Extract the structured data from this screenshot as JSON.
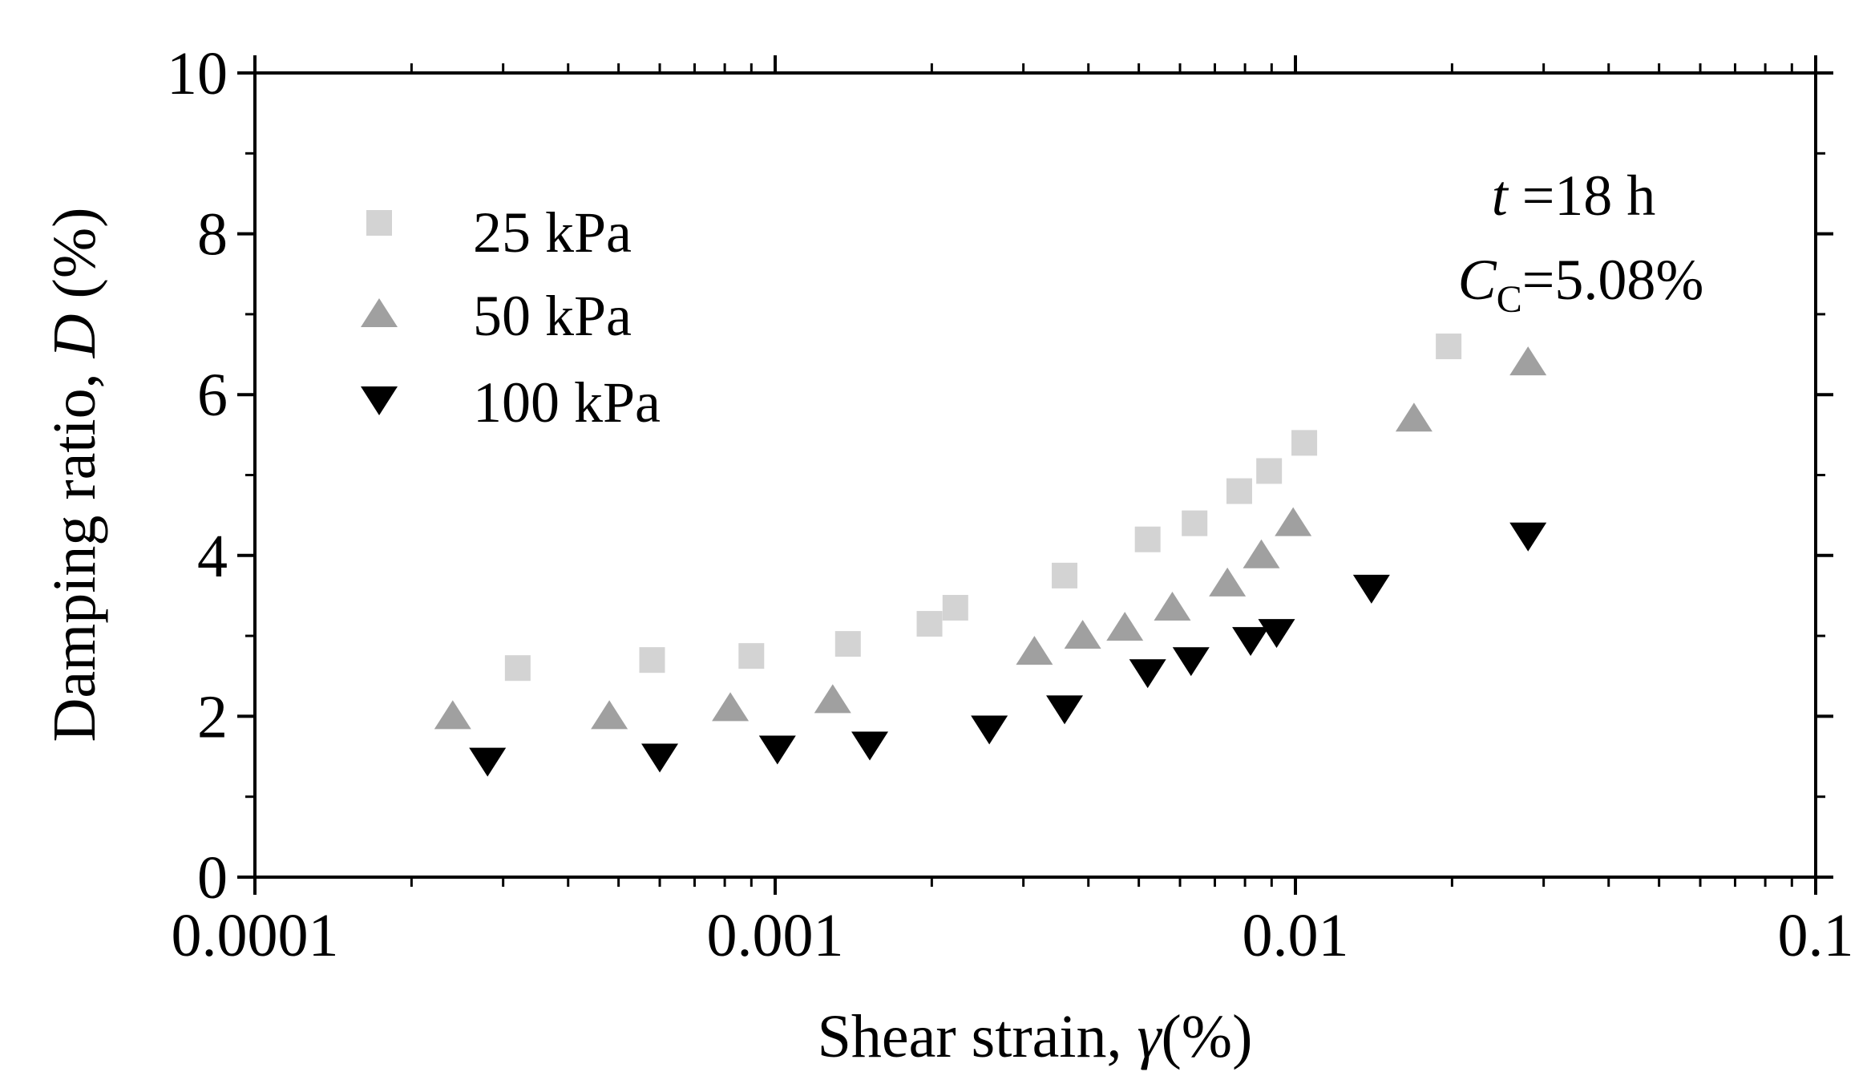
{
  "chart_data": {
    "type": "scatter",
    "xscale": "log",
    "xlim": [
      0.0001,
      0.1
    ],
    "ylim": [
      0,
      10
    ],
    "xticks": [
      0.0001,
      0.001,
      0.01,
      0.1
    ],
    "xtick_labels": [
      "0.0001",
      "0.001",
      "0.01",
      "0.1"
    ],
    "yticks": [
      0,
      2,
      4,
      6,
      8,
      10
    ],
    "ytick_labels": [
      "0",
      "2",
      "4",
      "6",
      "8",
      "10"
    ],
    "xlabel": {
      "prefix": "Shear strain, ",
      "symbol": "γ",
      "suffix": "(%)"
    },
    "ylabel": {
      "prefix": "Damping ratio, ",
      "symbol": "D",
      "suffix": " (%)"
    },
    "legend_position": "top-left",
    "annotation": {
      "line1_symbol": "t",
      "line1_text": " =18 h",
      "line2_symbol": "C",
      "line2_subscript": "C",
      "line2_text": "=5.08%"
    },
    "series": [
      {
        "name": "25 kPa",
        "marker": "square",
        "color": "#d3d3d3",
        "x": [
          0.00032,
          0.00058,
          0.0009,
          0.00138,
          0.00198,
          0.00222,
          0.0036,
          0.0052,
          0.0064,
          0.0078,
          0.0089,
          0.0104,
          0.0197
        ],
        "y": [
          2.6,
          2.7,
          2.75,
          2.9,
          3.15,
          3.35,
          3.75,
          4.2,
          4.4,
          4.8,
          5.05,
          5.4,
          6.6
        ]
      },
      {
        "name": "50 kPa",
        "marker": "triangle-up",
        "color": "#a0a0a0",
        "x": [
          0.00024,
          0.00048,
          0.00082,
          0.00129,
          0.00315,
          0.0039,
          0.0047,
          0.0058,
          0.0074,
          0.0086,
          0.0099,
          0.0169,
          0.028
        ],
        "y": [
          2.0,
          2.0,
          2.1,
          2.2,
          2.8,
          3.0,
          3.1,
          3.35,
          3.65,
          4.0,
          4.4,
          5.7,
          6.4
        ]
      },
      {
        "name": "100 kPa",
        "marker": "triangle-down",
        "color": "#000000",
        "x": [
          0.00028,
          0.0006,
          0.00101,
          0.00152,
          0.00258,
          0.0036,
          0.0052,
          0.0063,
          0.0082,
          0.0092,
          0.014,
          0.028
        ],
        "y": [
          1.45,
          1.5,
          1.6,
          1.65,
          1.85,
          2.1,
          2.55,
          2.7,
          2.95,
          3.05,
          3.6,
          4.25
        ]
      }
    ]
  }
}
